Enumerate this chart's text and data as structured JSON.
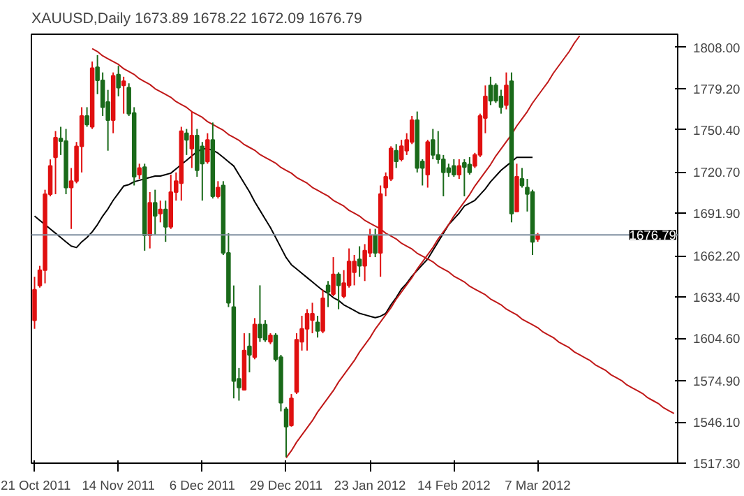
{
  "chart_data": {
    "type": "candlestick",
    "title": "XAUUSD,Daily  1673.89 1678.22 1672.09 1676.79",
    "categories": [
      "21 Oct 2011",
      null,
      null,
      null,
      null,
      null,
      null,
      null,
      null,
      null,
      null,
      null,
      null,
      null,
      null,
      null,
      "14 Nov 2011",
      null,
      null,
      null,
      null,
      null,
      null,
      null,
      null,
      null,
      null,
      null,
      null,
      null,
      null,
      null,
      "6 Dec 2011",
      null,
      null,
      null,
      null,
      null,
      null,
      null,
      null,
      null,
      null,
      null,
      null,
      null,
      null,
      null,
      "29 Dec 2011",
      null,
      null,
      null,
      null,
      null,
      null,
      null,
      null,
      null,
      null,
      null,
      null,
      null,
      null,
      null,
      "23 Jan 2012",
      null,
      null,
      null,
      null,
      null,
      null,
      null,
      null,
      null,
      null,
      null,
      null,
      null,
      null,
      null,
      "14 Feb 2012",
      null,
      null,
      null,
      null,
      null,
      null,
      null,
      null,
      null,
      null,
      null,
      null,
      null,
      null,
      null,
      "7 Mar 2012",
      null,
      null,
      null,
      null,
      null,
      null,
      null,
      null,
      null,
      null,
      null,
      null,
      null,
      null,
      null,
      null,
      null,
      null,
      null,
      null,
      null,
      null,
      null,
      null,
      null,
      null
    ],
    "ohlc": [
      [
        1617.2,
        1647.6,
        1611.2,
        1638.5
      ],
      [
        1641.5,
        1655.2,
        1640.0,
        1652.2
      ],
      [
        1652.2,
        1708.4,
        1643.0,
        1705.3
      ],
      [
        1705.3,
        1729.6,
        1703.8,
        1725.1
      ],
      [
        1731.1,
        1749.4,
        1705.3,
        1744.8
      ],
      [
        1744.2,
        1752.4,
        1732.7,
        1742.4
      ],
      [
        1742.4,
        1750.9,
        1705.3,
        1709.9
      ],
      [
        1709.9,
        1723.6,
        1681.0,
        1714.4
      ],
      [
        1714.4,
        1741.8,
        1712.9,
        1738.7
      ],
      [
        1738.7,
        1766.1,
        1720.5,
        1760.0
      ],
      [
        1760.0,
        1766.1,
        1752.4,
        1754.0
      ],
      [
        1752.4,
        1798.0,
        1750.9,
        1793.4
      ],
      [
        1794.0,
        1802.5,
        1775.2,
        1784.9
      ],
      [
        1784.9,
        1790.4,
        1760.0,
        1766.1
      ],
      [
        1769.7,
        1778.2,
        1735.7,
        1757.0
      ],
      [
        1757.0,
        1790.4,
        1747.9,
        1788.0
      ],
      [
        1788.9,
        1795.0,
        1773.7,
        1779.8
      ],
      [
        1781.3,
        1787.4,
        1761.6,
        1784.3
      ],
      [
        1779.8,
        1782.8,
        1760.0,
        1761.5
      ],
      [
        1762.1,
        1766.1,
        1711.4,
        1717.5
      ],
      [
        1719.0,
        1726.6,
        1716.0,
        1723.6
      ],
      [
        1724.2,
        1726.6,
        1665.8,
        1676.5
      ],
      [
        1676.5,
        1706.8,
        1667.4,
        1699.3
      ],
      [
        1699.3,
        1708.4,
        1676.5,
        1690.1
      ],
      [
        1691.7,
        1700.8,
        1685.6,
        1694.7
      ],
      [
        1694.7,
        1700.8,
        1672.0,
        1682.5
      ],
      [
        1682.5,
        1719.0,
        1681.0,
        1706.8
      ],
      [
        1706.8,
        1720.5,
        1700.8,
        1714.4
      ],
      [
        1713.0,
        1752.4,
        1700.8,
        1749.4
      ],
      [
        1747.9,
        1750.9,
        1732.7,
        1743.3
      ],
      [
        1737.2,
        1763.1,
        1723.6,
        1746.3
      ],
      [
        1746.3,
        1750.9,
        1717.5,
        1722.0
      ],
      [
        1738.7,
        1741.8,
        1700.8,
        1726.6
      ],
      [
        1728.1,
        1747.9,
        1726.6,
        1743.3
      ],
      [
        1743.3,
        1755.4,
        1702.3,
        1703.8
      ],
      [
        1703.8,
        1714.4,
        1702.3,
        1709.9
      ],
      [
        1711.4,
        1714.4,
        1662.8,
        1664.3
      ],
      [
        1664.3,
        1678.0,
        1626.4,
        1629.4
      ],
      [
        1626.4,
        1641.5,
        1562.6,
        1574.7
      ],
      [
        1576.2,
        1583.8,
        1561.0,
        1570.2
      ],
      [
        1568.6,
        1608.1,
        1568.6,
        1596.0
      ],
      [
        1599.0,
        1608.1,
        1580.8,
        1593.0
      ],
      [
        1591.4,
        1618.7,
        1589.9,
        1614.2
      ],
      [
        1614.2,
        1641.6,
        1602.1,
        1605.1
      ],
      [
        1614.2,
        1617.3,
        1602.1,
        1603.6
      ],
      [
        1602.1,
        1608.1,
        1600.5,
        1606.6
      ],
      [
        1606.6,
        1608.1,
        1588.4,
        1589.9
      ],
      [
        1591.4,
        1593.0,
        1553.5,
        1559.5
      ],
      [
        1555.0,
        1556.5,
        1521.6,
        1542.8
      ],
      [
        1543.7,
        1565.6,
        1542.8,
        1562.6
      ],
      [
        1567.1,
        1608.1,
        1565.6,
        1603.6
      ],
      [
        1602.1,
        1620.3,
        1596.0,
        1611.2
      ],
      [
        1611.2,
        1624.9,
        1596.0,
        1621.8
      ],
      [
        1617.3,
        1629.4,
        1608.1,
        1621.8
      ],
      [
        1615.7,
        1620.3,
        1605.1,
        1609.7
      ],
      [
        1609.7,
        1638.5,
        1608.1,
        1632.5
      ],
      [
        1641.6,
        1644.6,
        1626.4,
        1637.0
      ],
      [
        1635.5,
        1661.3,
        1634.0,
        1649.2
      ],
      [
        1649.2,
        1650.7,
        1624.9,
        1641.6
      ],
      [
        1634.0,
        1652.2,
        1632.5,
        1643.1
      ],
      [
        1641.6,
        1667.4,
        1640.0,
        1658.3
      ],
      [
        1650.7,
        1662.8,
        1641.6,
        1658.3
      ],
      [
        1659.8,
        1668.9,
        1647.6,
        1655.2
      ],
      [
        1655.2,
        1670.4,
        1644.6,
        1665.9
      ],
      [
        1664.3,
        1681.1,
        1661.3,
        1676.5
      ],
      [
        1676.5,
        1681.1,
        1661.3,
        1664.3
      ],
      [
        1664.3,
        1711.4,
        1647.6,
        1705.4
      ],
      [
        1709.9,
        1720.5,
        1703.8,
        1717.5
      ],
      [
        1716.0,
        1738.8,
        1714.5,
        1737.3
      ],
      [
        1735.7,
        1740.3,
        1723.6,
        1728.2
      ],
      [
        1729.7,
        1743.3,
        1728.2,
        1738.8
      ],
      [
        1735.7,
        1747.9,
        1732.7,
        1743.3
      ],
      [
        1741.8,
        1760.0,
        1740.3,
        1757.0
      ],
      [
        1757.0,
        1763.1,
        1720.5,
        1723.6
      ],
      [
        1728.2,
        1729.7,
        1711.4,
        1723.6
      ],
      [
        1719.0,
        1743.3,
        1709.9,
        1741.8
      ],
      [
        1743.3,
        1750.9,
        1729.7,
        1732.7
      ],
      [
        1732.7,
        1749.4,
        1726.6,
        1729.7
      ],
      [
        1729.7,
        1732.7,
        1703.8,
        1720.5
      ],
      [
        1723.6,
        1726.6,
        1717.5,
        1720.5
      ],
      [
        1725.1,
        1729.7,
        1717.5,
        1719.0
      ],
      [
        1719.0,
        1729.7,
        1716.0,
        1725.1
      ],
      [
        1727.2,
        1729.7,
        1703.8,
        1724.2
      ],
      [
        1726.0,
        1731.2,
        1719.0,
        1720.5
      ],
      [
        1725.1,
        1734.2,
        1723.6,
        1732.7
      ],
      [
        1732.7,
        1761.6,
        1731.2,
        1760.0
      ],
      [
        1758.5,
        1781.3,
        1747.9,
        1773.7
      ],
      [
        1781.3,
        1787.4,
        1767.6,
        1770.6
      ],
      [
        1781.3,
        1782.8,
        1769.1,
        1770.6
      ],
      [
        1773.7,
        1778.3,
        1761.6,
        1766.1
      ],
      [
        1767.6,
        1790.4,
        1764.6,
        1781.3
      ],
      [
        1784.3,
        1790.4,
        1685.6,
        1691.7
      ],
      [
        1693.2,
        1726.6,
        1693.2,
        1717.5
      ],
      [
        1716.0,
        1723.6,
        1709.9,
        1711.4
      ],
      [
        1709.9,
        1716.0,
        1693.2,
        1705.4
      ],
      [
        1706.9,
        1708.4,
        1662.8,
        1671.9
      ],
      [
        1673.89,
        1678.22,
        1672.09,
        1676.79
      ],
      null,
      null,
      null,
      null,
      null,
      null,
      null,
      null,
      null,
      null,
      null,
      null,
      null,
      null,
      null,
      null,
      null,
      null,
      null,
      null,
      null,
      null,
      null,
      null,
      null,
      null
    ],
    "colors": [
      "#e01010",
      "#e01010",
      "#e01010",
      "#e01010",
      "#e01010",
      "#1a6a1a",
      "#1a6a1a",
      "#e01010",
      "#e01010",
      "#e01010",
      "#1a6a1a",
      "#e01010",
      "#1a6a1a",
      "#1a6a1a",
      "#1a6a1a",
      "#e01010",
      "#1a6a1a",
      "#e01010",
      "#1a6a1a",
      "#1a6a1a",
      "#e01010",
      "#1a6a1a",
      "#e01010",
      "#1a6a1a",
      "#e01010",
      "#1a6a1a",
      "#e01010",
      "#e01010",
      "#e01010",
      "#1a6a1a",
      "#e01010",
      "#1a6a1a",
      "#1a6a1a",
      "#e01010",
      "#1a6a1a",
      "#e01010",
      "#1a6a1a",
      "#1a6a1a",
      "#1a6a1a",
      "#1a6a1a",
      "#e01010",
      "#1a6a1a",
      "#e01010",
      "#1a6a1a",
      "#1a6a1a",
      "#e01010",
      "#1a6a1a",
      "#1a6a1a",
      "#1a6a1a",
      "#e01010",
      "#e01010",
      "#e01010",
      "#e01010",
      "#e01010",
      "#1a6a1a",
      "#e01010",
      "#1a6a1a",
      "#e01010",
      "#1a6a1a",
      "#e01010",
      "#e01010",
      "#e01010",
      "#1a6a1a",
      "#e01010",
      "#e01010",
      "#1a6a1a",
      "#e01010",
      "#e01010",
      "#e01010",
      "#1a6a1a",
      "#e01010",
      "#e01010",
      "#e01010",
      "#1a6a1a",
      "#1a6a1a",
      "#e01010",
      "#1a6a1a",
      "#1a6a1a",
      "#1a6a1a",
      "#1a6a1a",
      "#1a6a1a",
      "#e01010",
      "#1a6a1a",
      "#1a6a1a",
      "#e01010",
      "#e01010",
      "#e01010",
      "#1a6a1a",
      "#1a6a1a",
      "#1a6a1a",
      "#e01010",
      "#1a6a1a",
      "#e01010",
      "#1a6a1a",
      "#1a6a1a",
      "#1a6a1a",
      "#e01010",
      null,
      null,
      null,
      null,
      null,
      null,
      null,
      null,
      null,
      null,
      null,
      null,
      null,
      null,
      null,
      null,
      null,
      null,
      null,
      null,
      null,
      null,
      null,
      null,
      null,
      null
    ],
    "series": [
      {
        "type": "line",
        "color": "#000000",
        "values": [
          1690,
          1687,
          1684,
          1681,
          1678,
          1675,
          1672,
          1669,
          1668,
          1672,
          1675,
          1679,
          1684,
          1690,
          1695,
          1701,
          1706,
          1711,
          1712,
          1714,
          1715,
          1716,
          1717,
          1718,
          1718,
          1719,
          1720,
          1723,
          1726,
          1729,
          1732,
          1735,
          1737,
          1737,
          1736,
          1734,
          1731,
          1728,
          1725,
          1719,
          1713,
          1707,
          1700,
          1694,
          1688,
          1682,
          1675,
          1668,
          1661,
          1656,
          1653,
          1650,
          1647,
          1644,
          1641,
          1638,
          1636,
          1633,
          1631,
          1628,
          1626,
          1624,
          1622,
          1621,
          1620,
          1619,
          1620,
          1622,
          1628,
          1633,
          1639,
          1643,
          1648,
          1652,
          1656,
          1660,
          1666,
          1672,
          1678,
          1684,
          1688,
          1692,
          1697,
          1699,
          1701,
          1705,
          1709,
          1714,
          1718,
          1722,
          1725,
          1728,
          1731,
          1731,
          1731,
          1731,
          null,
          null,
          null,
          null,
          null,
          null,
          null,
          null,
          null,
          null,
          null,
          null,
          null,
          null,
          null,
          null,
          null,
          null,
          null,
          null,
          null,
          null,
          null,
          null,
          null,
          null,
          null
        ]
      },
      {
        "type": "line",
        "color": "#c01818",
        "values": [
          null,
          null,
          null,
          null,
          null,
          null,
          null,
          null,
          null,
          null,
          null,
          1807,
          1805,
          1802,
          1800,
          1798,
          1796,
          1793,
          1791,
          1789,
          1786,
          1784,
          1782,
          1779,
          1777,
          1775,
          1773,
          1770,
          1768,
          1766,
          1763,
          1761,
          1759,
          1756,
          1754,
          1752,
          1750,
          1747,
          1745,
          1743,
          1740,
          1738,
          1736,
          1733,
          1731,
          1729,
          1727,
          1724,
          1722,
          1720,
          1717,
          1715,
          1713,
          1710,
          1708,
          1706,
          1704,
          1701,
          1699,
          1697,
          1694,
          1692,
          1690,
          1687,
          1685,
          1683,
          1681,
          1678,
          1676,
          1674,
          1671,
          1669,
          1667,
          1664,
          1662,
          1660,
          1658,
          1655,
          1653,
          1651,
          1648,
          1646,
          1644,
          1641,
          1639,
          1637,
          1635,
          1632,
          1630,
          1628,
          1625,
          1623,
          1621,
          1618,
          1616,
          1614,
          1612,
          1609,
          1607,
          1605,
          1602,
          1600,
          1598,
          1595,
          1593,
          1591,
          1589,
          1586,
          1584,
          1582,
          1579,
          1577,
          1575,
          1572,
          1570,
          1568,
          1566,
          1563,
          1561,
          1559,
          1556,
          1554,
          1552
        ]
      },
      {
        "type": "line",
        "color": "#c01818",
        "values": [
          null,
          null,
          null,
          null,
          null,
          null,
          null,
          null,
          null,
          null,
          null,
          null,
          null,
          null,
          null,
          null,
          null,
          null,
          null,
          null,
          null,
          null,
          null,
          null,
          null,
          null,
          null,
          null,
          null,
          null,
          null,
          null,
          null,
          null,
          null,
          null,
          null,
          null,
          null,
          null,
          null,
          null,
          null,
          null,
          null,
          null,
          null,
          null,
          1521,
          1526,
          1532,
          1537,
          1542,
          1547,
          1553,
          1558,
          1563,
          1568,
          1574,
          1579,
          1584,
          1589,
          1595,
          1600,
          1605,
          1611,
          1616,
          1621,
          1626,
          1632,
          1637,
          1642,
          1647,
          1653,
          1658,
          1663,
          1668,
          1674,
          1679,
          1684,
          1690,
          1695,
          1700,
          1705,
          1711,
          1716,
          1721,
          1726,
          1732,
          1737,
          1742,
          1747,
          1753,
          1758,
          1763,
          1769,
          1774,
          1779,
          1784,
          1790,
          1795,
          1800,
          1805,
          1811,
          1816,
          null,
          null,
          null,
          null,
          null,
          null,
          null,
          null,
          null,
          null,
          null,
          null,
          null,
          null,
          null,
          null,
          null,
          null
        ]
      }
    ],
    "ylim": [
      1517.3,
      1817.1
    ],
    "yticks": [
      {
        "value": 1808,
        "label": "1808.00"
      },
      {
        "value": 1779.2,
        "label": "1779.20"
      },
      {
        "value": 1750.4,
        "label": "1750.40"
      },
      {
        "value": 1720.7,
        "label": "1720.70"
      },
      {
        "value": 1691.9,
        "label": "1691.90"
      },
      {
        "value": 1662.2,
        "label": "1662.20"
      },
      {
        "value": 1633.4,
        "label": "1633.40"
      },
      {
        "value": 1604.6,
        "label": "1604.60"
      },
      {
        "value": 1574.9,
        "label": "1574.90"
      },
      {
        "value": 1546.1,
        "label": "1546.10"
      },
      {
        "value": 1517.3,
        "label": "1517.30"
      }
    ],
    "ref_lines": [
      {
        "axis": "y",
        "value": 1676.79,
        "label": "1676.79",
        "color": "#8090a0"
      }
    ],
    "grid": false
  }
}
